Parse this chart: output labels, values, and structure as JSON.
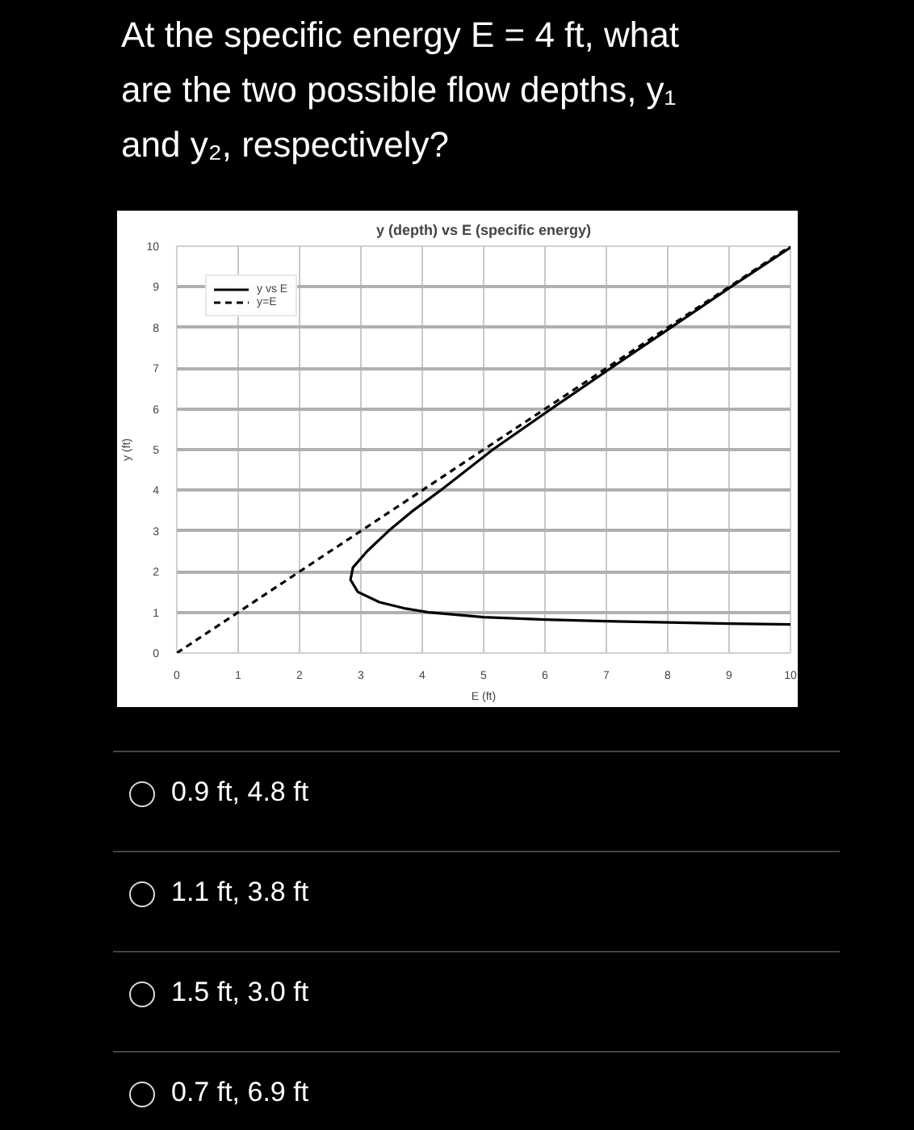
{
  "chart_data": {
    "type": "line",
    "title": "At the specific energy E = 4 ft, what are the two possible flow depths, y₁ and y₂, respectively?",
    "subtitle": "y (depth) vs E (specific energy)",
    "xlabel": "E (ft)",
    "ylabel": "y (ft)",
    "series": [
      {
        "name": "y vs E",
        "color": "#000000",
        "line_style": "solid",
        "x": [
          10,
          9,
          8,
          7,
          6,
          5,
          4.1,
          3.7,
          3.3,
          2.95,
          2.83,
          2.87,
          3.1,
          3.45,
          3.85,
          4.3,
          5.15,
          6.1,
          7.07,
          8.05,
          9.03,
          10
        ],
        "values": [
          0.7,
          0.72,
          0.75,
          0.78,
          0.82,
          0.88,
          1.0,
          1.1,
          1.25,
          1.5,
          1.8,
          2.1,
          2.5,
          3.0,
          3.5,
          4.0,
          5.0,
          6.0,
          7.0,
          8.0,
          9.0,
          9.97
        ]
      },
      {
        "name": "y=E",
        "color": "#000000",
        "line_style": "dashed",
        "x": [
          0,
          10
        ],
        "values": [
          0,
          10
        ]
      }
    ],
    "xlim": [
      0,
      10
    ],
    "ylim": [
      0,
      10
    ],
    "xticks": [
      0,
      1,
      2,
      3,
      4,
      5,
      6,
      7,
      8,
      9,
      10
    ],
    "yticks": [
      0,
      1,
      2,
      3,
      4,
      5,
      6,
      7,
      8,
      9,
      10
    ],
    "grid": true,
    "legend": "top left",
    "marker": "none",
    "annotations": [
      "0.9 ft, 4.8 ft",
      "1.1 ft, 3.8 ft",
      "1.5 ft, 3.0 ft",
      "0.7 ft, 6.9 ft"
    ]
  }
}
